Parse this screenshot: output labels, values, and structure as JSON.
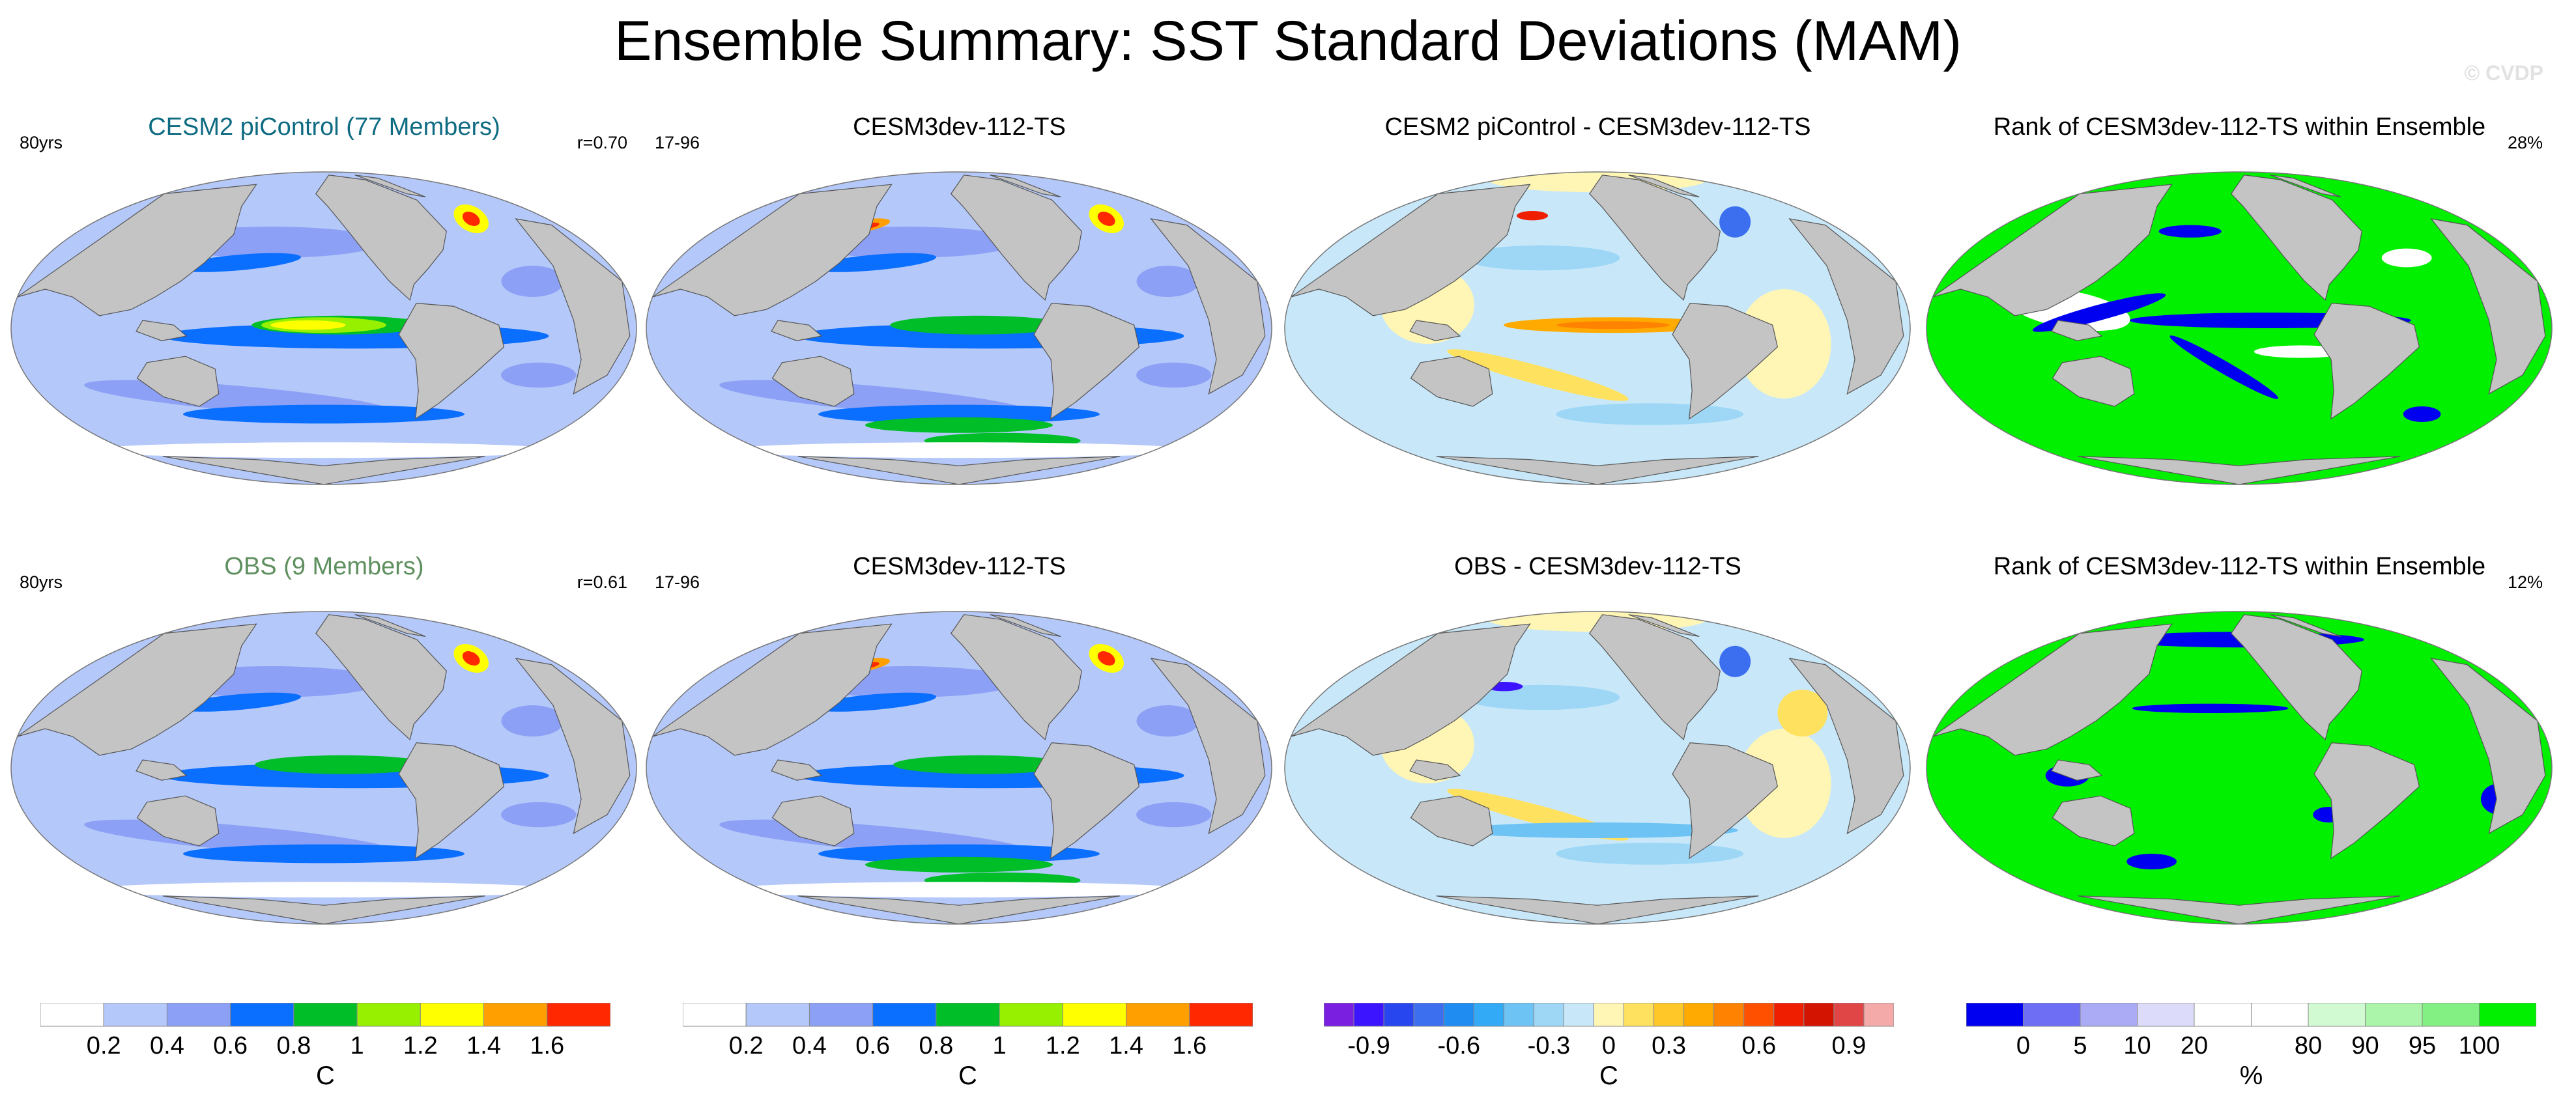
{
  "title": "Ensemble Summary: SST Standard Deviations (MAM)",
  "watermark": "© CVDP",
  "colors": {
    "land": "#c4c4c4",
    "title_teal": "#0e6b82",
    "title_green": "#5e8f5e"
  },
  "panels": [
    {
      "id": "p1",
      "title": "CESM2 piControl (77 Members)",
      "title_color": "teal",
      "left": "80yrs",
      "right": "r=0.70",
      "kind": "sd",
      "variant": 0
    },
    {
      "id": "p2",
      "title": "CESM3dev-112-TS",
      "title_color": "black",
      "left": "17-96",
      "right": "",
      "kind": "sd",
      "variant": 1
    },
    {
      "id": "p3",
      "title": "CESM2 piControl - CESM3dev-112-TS",
      "title_color": "black",
      "left": "",
      "right": "",
      "kind": "diff",
      "variant": 2
    },
    {
      "id": "p4",
      "title": "Rank of CESM3dev-112-TS within Ensemble",
      "title_color": "black",
      "left": "",
      "right": "28%",
      "kind": "rank",
      "variant": 3
    },
    {
      "id": "p5",
      "title": "OBS (9 Members)",
      "title_color": "green",
      "left": "80yrs",
      "right": "r=0.61",
      "kind": "sd",
      "variant": 4
    },
    {
      "id": "p6",
      "title": "CESM3dev-112-TS",
      "title_color": "black",
      "left": "17-96",
      "right": "",
      "kind": "sd",
      "variant": 5
    },
    {
      "id": "p7",
      "title": "OBS - CESM3dev-112-TS",
      "title_color": "black",
      "left": "",
      "right": "",
      "kind": "diff",
      "variant": 6
    },
    {
      "id": "p8",
      "title": "Rank of CESM3dev-112-TS within Ensemble",
      "title_color": "black",
      "left": "",
      "right": "12%",
      "kind": "rank",
      "variant": 7
    }
  ],
  "colorbars": [
    {
      "kind": "sd",
      "unit": "C",
      "colors": [
        "#ffffff",
        "#b4c8fa",
        "#8ca0f5",
        "#0a6eff",
        "#00be28",
        "#96f000",
        "#ffff00",
        "#ffa000",
        "#ff2800"
      ],
      "labels": [
        "0.2",
        "0.4",
        "0.6",
        "0.8",
        "1",
        "1.2",
        "1.4",
        "1.6"
      ]
    },
    {
      "kind": "sd",
      "unit": "C",
      "colors": [
        "#ffffff",
        "#b4c8fa",
        "#8ca0f5",
        "#0a6eff",
        "#00be28",
        "#96f000",
        "#ffff00",
        "#ffa000",
        "#ff2800"
      ],
      "labels": [
        "0.2",
        "0.4",
        "0.6",
        "0.8",
        "1",
        "1.2",
        "1.4",
        "1.6"
      ]
    },
    {
      "kind": "diff",
      "unit": "C",
      "colors": [
        "#7a1fe0",
        "#3c14ff",
        "#2846f0",
        "#3c6ef0",
        "#1e8cf0",
        "#32aaf5",
        "#6ec3f5",
        "#9ed7f5",
        "#c8e8fa",
        "#fff5b4",
        "#ffe160",
        "#ffc828",
        "#ffaa00",
        "#ff8200",
        "#ff5000",
        "#f01e00",
        "#d21400",
        "#e14646",
        "#f5aaaa"
      ],
      "labels": [
        "-0.9",
        "-0.6",
        "-0.3",
        "0",
        "0.3",
        "0.6",
        "0.9"
      ]
    },
    {
      "kind": "rank",
      "unit": "%",
      "colors": [
        "#0000f0",
        "#6e6ef5",
        "#aaaaf5",
        "#dcdcfa",
        "#ffffff",
        "#ffffff",
        "#d2fad2",
        "#aaf5aa",
        "#82f082",
        "#00f000"
      ],
      "labels": [
        "0",
        "5",
        "10",
        "20",
        "80",
        "90",
        "95",
        "100"
      ]
    }
  ]
}
